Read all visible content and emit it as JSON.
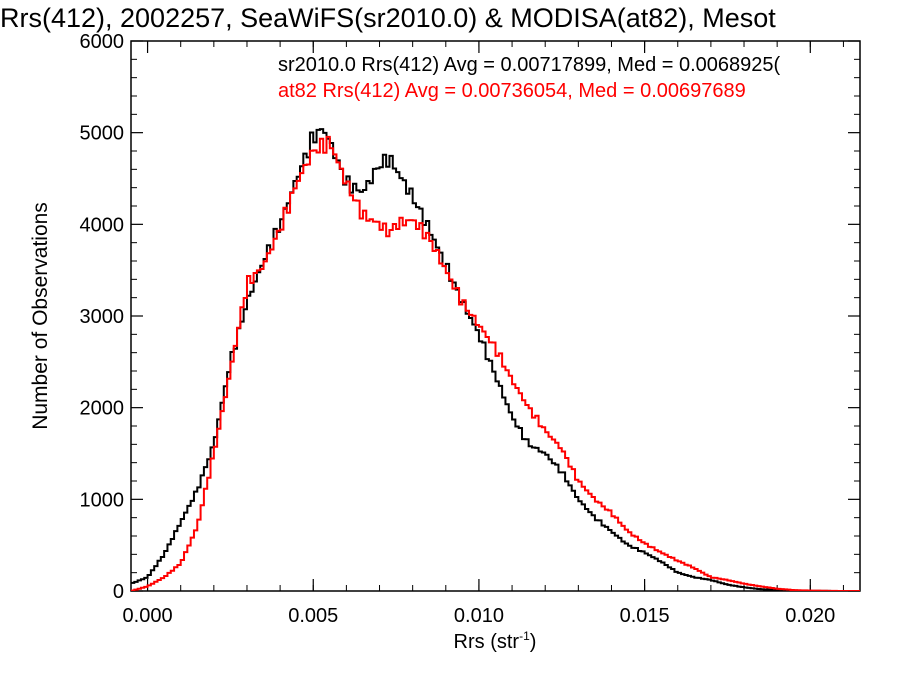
{
  "chart_data": {
    "type": "line",
    "title": "Rrs(412), 2002257, SeaWiFS(sr2010.0) & MODISA(at82), Mesot",
    "xlabel": "Rrs (str",
    "xlabel_sup": "-1",
    "xlabel_close": ")",
    "ylabel": "Number of Observations",
    "xlim": [
      -0.0005,
      0.0215
    ],
    "ylim": [
      0,
      6000
    ],
    "x_ticks": [
      0.0,
      0.005,
      0.01,
      0.015,
      0.02
    ],
    "x_tick_labels": [
      "0.000",
      "0.005",
      "0.010",
      "0.015",
      "0.020"
    ],
    "y_ticks": [
      0,
      1000,
      2000,
      3000,
      4000,
      5000,
      6000
    ],
    "y_tick_labels": [
      "0",
      "1000",
      "2000",
      "3000",
      "4000",
      "5000",
      "6000"
    ],
    "grid": false,
    "legend_position": "top-right",
    "series": [
      {
        "name": "sr2010.0",
        "legend_text": "sr2010.0 Rrs(412) Avg = 0.00717899, Med = 0.0068925(",
        "color": "#000000",
        "x": [
          -0.0005,
          0.0,
          0.0005,
          0.001,
          0.0015,
          0.002,
          0.0025,
          0.003,
          0.0035,
          0.004,
          0.0045,
          0.005,
          0.0053,
          0.0055,
          0.006,
          0.0065,
          0.007,
          0.0073,
          0.0075,
          0.008,
          0.0085,
          0.009,
          0.0095,
          0.01,
          0.0105,
          0.011,
          0.0115,
          0.012,
          0.0125,
          0.013,
          0.0135,
          0.014,
          0.0145,
          0.015,
          0.0155,
          0.016,
          0.0165,
          0.017,
          0.0175,
          0.018,
          0.0185,
          0.019,
          0.0195,
          0.02,
          0.0205,
          0.021
        ],
        "y": [
          80,
          150,
          400,
          750,
          1100,
          1600,
          2500,
          3150,
          3600,
          4000,
          4500,
          4950,
          5050,
          4900,
          4450,
          4350,
          4650,
          4720,
          4600,
          4300,
          3950,
          3550,
          3150,
          2800,
          2350,
          1900,
          1600,
          1500,
          1300,
          1000,
          800,
          650,
          500,
          420,
          320,
          200,
          150,
          120,
          70,
          40,
          20,
          10,
          5,
          2,
          1,
          0
        ]
      },
      {
        "name": "at82",
        "legend_text": "at82 Rrs(412) Avg = 0.00736054, Med = 0.00697689",
        "color": "#ff0000",
        "x": [
          -0.0005,
          0.0,
          0.0005,
          0.001,
          0.0015,
          0.002,
          0.0025,
          0.003,
          0.0035,
          0.004,
          0.0045,
          0.005,
          0.0055,
          0.006,
          0.0065,
          0.007,
          0.0073,
          0.0075,
          0.008,
          0.0085,
          0.009,
          0.0095,
          0.01,
          0.0105,
          0.011,
          0.0115,
          0.012,
          0.0125,
          0.013,
          0.0135,
          0.014,
          0.0145,
          0.015,
          0.0155,
          0.016,
          0.0165,
          0.017,
          0.0175,
          0.018,
          0.0185,
          0.019,
          0.0195,
          0.02,
          0.0205,
          0.021
        ],
        "y": [
          0,
          50,
          150,
          300,
          700,
          1500,
          2400,
          3350,
          3550,
          3950,
          4450,
          4800,
          4900,
          4450,
          4100,
          4000,
          3900,
          4000,
          4050,
          3850,
          3500,
          3150,
          2900,
          2650,
          2300,
          2000,
          1750,
          1550,
          1200,
          1000,
          850,
          650,
          520,
          420,
          330,
          250,
          150,
          120,
          80,
          50,
          25,
          10,
          5,
          2,
          0
        ]
      }
    ]
  }
}
